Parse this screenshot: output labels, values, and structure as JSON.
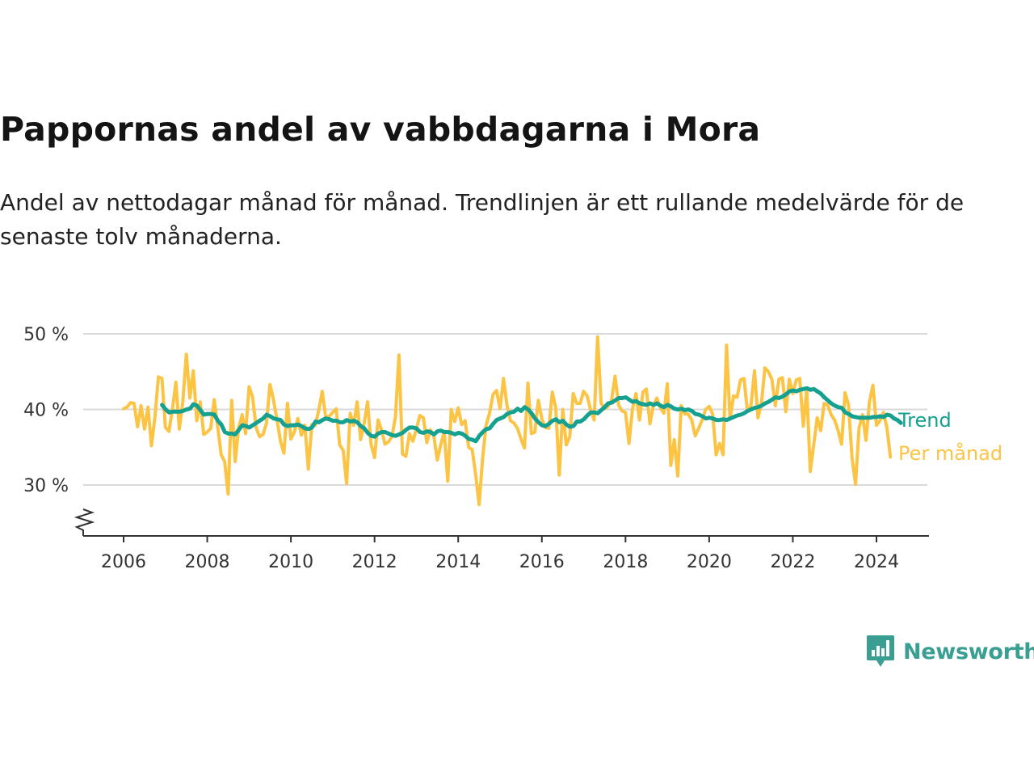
{
  "title": "Pappornas andel av vabbdagarna i Mora",
  "subtitle": "Andel av nettodagar månad för månad. Trendlinjen är ett rullande medelvärde för de senaste tolv månaderna.",
  "brand": {
    "name": "Newsworthy",
    "color": "#3a9e92",
    "icon": "newsworthy-logo-icon"
  },
  "colors": {
    "trend": "#16a08f",
    "monthly": "#fcc445",
    "grid": "#d9d9d9",
    "axis": "#333333"
  },
  "chart_data": {
    "type": "line",
    "x_unit": "year",
    "xlim": [
      2005.75,
      2025.2
    ],
    "ylim": [
      24,
      50
    ],
    "y_axis_break": true,
    "grid": true,
    "legend": "direct labels at line ends (right)",
    "x_ticks": [
      2006,
      2008,
      2010,
      2012,
      2014,
      2016,
      2018,
      2020,
      2022,
      2024
    ],
    "x_tick_labels": [
      "2006",
      "2008",
      "2010",
      "2012",
      "2014",
      "2016",
      "2018",
      "2020",
      "2022",
      "2024"
    ],
    "y_ticks": [
      30,
      40,
      50
    ],
    "y_tick_labels": [
      "30 %",
      "40 %",
      "50 %"
    ],
    "series": [
      {
        "name": "Per månad",
        "start": 2006.0,
        "step": 0.08333,
        "values": [
          40.1,
          40.3,
          40.9,
          40.8,
          37.7,
          40.5,
          37.4,
          40.3,
          35.2,
          39.0,
          44.3,
          44.1,
          37.6,
          37.1,
          40.0,
          43.6,
          37.4,
          41.0,
          47.3,
          41.5,
          45.1,
          38.5,
          41.0,
          36.7,
          37.0,
          37.5,
          41.3,
          37.7,
          34.0,
          33.1,
          28.8,
          41.2,
          33.1,
          37.5,
          39.3,
          36.8,
          43.0,
          41.7,
          37.6,
          36.4,
          36.7,
          38.2,
          43.3,
          41.3,
          38.7,
          35.8,
          34.2,
          40.8,
          36.1,
          37.0,
          38.8,
          36.6,
          37.9,
          32.1,
          38.0,
          37.9,
          39.9,
          42.4,
          39.0,
          39.1,
          39.6,
          40.1,
          35.3,
          34.6,
          30.2,
          39.5,
          37.9,
          41.0,
          36.0,
          38.1,
          41.0,
          35.4,
          33.6,
          38.6,
          37.3,
          35.4,
          35.7,
          36.4,
          39.0,
          47.2,
          34.1,
          33.8,
          36.8,
          35.8,
          37.4,
          39.2,
          38.9,
          35.6,
          37.3,
          36.5,
          33.3,
          35.3,
          37.1,
          30.5,
          40.0,
          38.4,
          40.2,
          38.0,
          38.5,
          35.0,
          34.7,
          31.4,
          27.4,
          33.5,
          37.9,
          39.5,
          42.0,
          42.5,
          40.1,
          44.1,
          40.5,
          38.5,
          38.2,
          37.5,
          36.1,
          34.9,
          43.5,
          36.8,
          37.0,
          41.2,
          38.7,
          37.6,
          37.5,
          42.3,
          40.2,
          31.3,
          40.0,
          35.3,
          36.4,
          42.1,
          40.8,
          40.8,
          42.4,
          41.8,
          39.9,
          38.6,
          49.6,
          40.8,
          40.1,
          40.4,
          41.2,
          44.4,
          40.6,
          39.8,
          39.6,
          35.5,
          40.0,
          42.1,
          38.6,
          42.3,
          42.7,
          38.1,
          40.5,
          41.5,
          40.2,
          39.5,
          43.4,
          32.6,
          36.0,
          31.2,
          40.5,
          39.4,
          39.4,
          38.6,
          36.5,
          37.5,
          38.6,
          40.0,
          40.4,
          39.4,
          34.0,
          35.5,
          34.0,
          48.5,
          38.7,
          41.8,
          41.6,
          43.9,
          44.1,
          39.7,
          40.5,
          45.1,
          38.9,
          40.8,
          45.5,
          45.0,
          44.0,
          40.5,
          44.0,
          44.2,
          39.7,
          44.0,
          42.1,
          43.9,
          44.1,
          37.8,
          42.8,
          31.8,
          35.3,
          38.9,
          37.2,
          40.8,
          40.6,
          39.3,
          38.6,
          37.2,
          35.4,
          42.2,
          40.6,
          33.5,
          30.1,
          37.5,
          39.3,
          35.9,
          41.0,
          43.2,
          37.9,
          38.5,
          39.6,
          37.6,
          33.7
        ]
      },
      {
        "name": "Trend",
        "start": 2006.92,
        "step": 0.08333,
        "values": [
          40.6,
          40.0,
          39.6,
          39.7,
          39.7,
          39.7,
          39.8,
          40.0,
          40.1,
          40.7,
          40.5,
          39.9,
          39.3,
          39.4,
          39.4,
          39.3,
          38.5,
          38.0,
          37.0,
          36.8,
          36.8,
          36.7,
          37.3,
          37.9,
          37.8,
          37.6,
          37.9,
          38.2,
          38.5,
          38.8,
          39.3,
          39.1,
          38.8,
          38.7,
          38.6,
          38.0,
          37.8,
          37.9,
          37.9,
          38.0,
          37.8,
          37.5,
          37.4,
          37.6,
          38.4,
          38.3,
          38.6,
          38.8,
          38.7,
          38.5,
          38.5,
          38.3,
          38.3,
          38.6,
          38.4,
          38.5,
          38.3,
          37.8,
          37.5,
          36.9,
          36.5,
          36.4,
          36.8,
          37.0,
          37.0,
          36.8,
          36.6,
          36.5,
          36.7,
          36.9,
          37.3,
          37.6,
          37.6,
          37.5,
          37.0,
          36.9,
          37.1,
          37.0,
          36.7,
          37.1,
          37.2,
          37.0,
          37.0,
          36.9,
          36.7,
          36.9,
          36.8,
          36.5,
          36.1,
          36.0,
          35.8,
          36.5,
          37.0,
          37.4,
          37.5,
          38.1,
          38.6,
          38.8,
          39.0,
          39.4,
          39.6,
          39.7,
          40.1,
          39.8,
          40.3,
          40.0,
          39.5,
          38.8,
          38.3,
          37.9,
          37.8,
          38.1,
          38.5,
          38.7,
          38.3,
          38.5,
          38.0,
          37.7,
          37.8,
          38.4,
          38.4,
          38.7,
          39.2,
          39.6,
          39.6,
          39.5,
          39.9,
          40.3,
          40.8,
          40.9,
          41.2,
          41.5,
          41.5,
          41.6,
          41.3,
          41.0,
          41.1,
          40.8,
          40.7,
          40.6,
          40.8,
          40.6,
          40.8,
          40.5,
          40.3,
          40.6,
          40.4,
          40.1,
          40.0,
          40.1,
          39.9,
          40.0,
          39.8,
          39.4,
          39.3,
          39.1,
          38.8,
          38.9,
          38.8,
          38.6,
          38.6,
          38.7,
          38.6,
          38.8,
          39.0,
          39.2,
          39.3,
          39.5,
          39.8,
          40.0,
          40.2,
          40.3,
          40.5,
          40.8,
          41.0,
          41.3,
          41.6,
          41.5,
          41.7,
          42.0,
          42.4,
          42.5,
          42.4,
          42.6,
          42.7,
          42.8,
          42.6,
          42.7,
          42.4,
          42.1,
          41.6,
          41.2,
          40.8,
          40.5,
          40.3,
          40.2,
          39.6,
          39.4,
          39.1,
          39.0,
          38.9,
          38.9,
          38.9,
          38.9,
          39.0,
          39.0,
          39.1,
          39.0,
          39.3,
          39.2,
          38.8,
          38.6,
          38.2
        ]
      }
    ]
  }
}
